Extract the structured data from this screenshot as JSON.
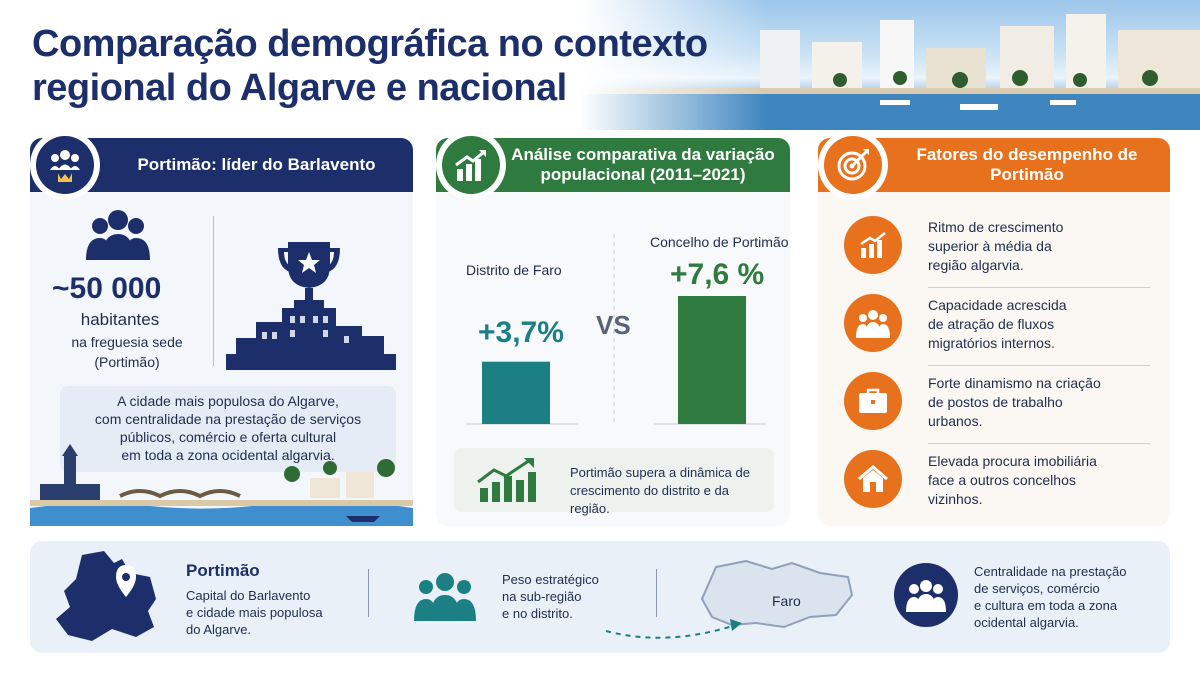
{
  "title": "Comparação demográfica no contexto regional do Algarve e nacional",
  "colors": {
    "navy": "#1d2f6b",
    "green": "#2f7a3e",
    "orange": "#e8711d",
    "teal": "#1b7f84"
  },
  "card_left": {
    "heading": "Portimão: líder do Barlavento",
    "population": "~50 000",
    "population_unit": "habitantes",
    "population_note_1": "na freguesia sede",
    "population_note_2": "(Portimão)",
    "description_1": "A cidade mais populosa do Algarve,",
    "description_2": "com centralidade na prestação de serviços",
    "description_3": "públicos, comércio e oferta cultural",
    "description_4": "em toda a zona ocidental algarvia."
  },
  "card_center": {
    "heading_1": "Análise comparativa da variação",
    "heading_2": "populacional (2011–2021)",
    "left_label": "Distrito de Faro",
    "left_value": "+3,7%",
    "right_label": "Concelho de Portimão",
    "right_value": "+7,6 %",
    "versus": "VS",
    "note_1": "Portimão supera a dinâmica de",
    "note_2": "crescimento do distrito e da região."
  },
  "chart_data": {
    "type": "bar",
    "categories": [
      "Distrito de Faro",
      "Concelho de Portimão"
    ],
    "values": [
      3.7,
      7.6
    ],
    "colors": [
      "#1b7f84",
      "#2f7a3e"
    ]
  },
  "card_right": {
    "heading": "Fatores do desempenho de Portimão",
    "factors": [
      {
        "l1": "Ritmo de crescimento",
        "l2": "superior à média da",
        "l3": "região algarvia.",
        "icon": "growth-chart-icon"
      },
      {
        "l1": "Capacidade acrescida",
        "l2": "de atração de fluxos",
        "l3": "migratórios internos.",
        "icon": "people-group-icon"
      },
      {
        "l1": "Forte dinamismo na criação",
        "l2": "de postos de trabalho",
        "l3": "urbanos.",
        "icon": "briefcase-icon"
      },
      {
        "l1": "Elevada procura imobiliária",
        "l2": "face a outros concelhos",
        "l3": "vizinhos.",
        "icon": "house-icon"
      }
    ]
  },
  "bottom": {
    "title": "Portimão",
    "caption_1": "Capital do Barlavento",
    "caption_2": "e cidade mais populosa",
    "caption_3": "do Algarve.",
    "weight_1": "Peso estratégico",
    "weight_2": "na sub-região",
    "weight_3": "e no distrito.",
    "map_label": "Faro",
    "central_1": "Centralidade na prestação",
    "central_2": "de serviços, comércio",
    "central_3": "e cultura em toda a zona",
    "central_4": "ocidental algarvia."
  }
}
